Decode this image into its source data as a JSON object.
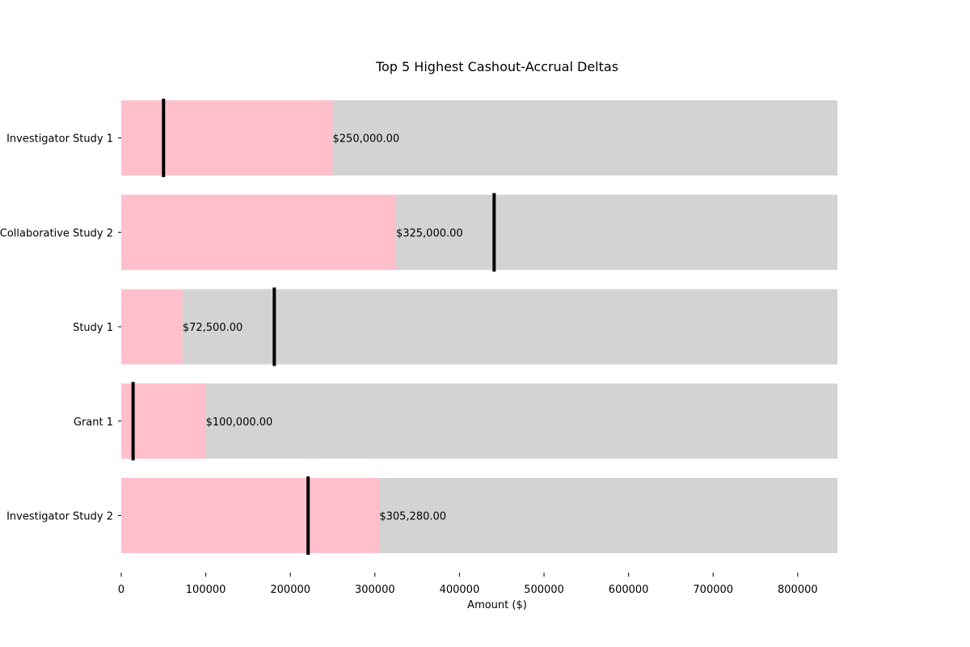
{
  "chart_data": {
    "type": "bar",
    "orientation": "horizontal",
    "title": "Top 5 Highest Cashout-Accrual Deltas",
    "xlabel": "Amount ($)",
    "ylabel": "",
    "xlim": [
      0,
      847000
    ],
    "xticks": [
      0,
      100000,
      200000,
      300000,
      400000,
      500000,
      600000,
      700000,
      800000
    ],
    "grid": false,
    "categories": [
      "Investigator Study 1",
      "Collaborative Study 2",
      "Study 1",
      "Grant 1",
      "Investigator Study 2"
    ],
    "series": [
      {
        "role": "background",
        "values": [
          847000,
          847000,
          847000,
          847000,
          847000
        ]
      },
      {
        "role": "delta",
        "values": [
          250000,
          325000,
          72500,
          100000,
          305280
        ]
      },
      {
        "role": "marker",
        "values": [
          50000,
          441000,
          181000,
          14000,
          221000
        ]
      }
    ],
    "data_labels": [
      "$250,000.00",
      "$325,000.00",
      "$72,500.00",
      "$100,000.00",
      "$305,280.00"
    ],
    "colors": {
      "background": "#d3d3d3",
      "delta": "#ffc0cb",
      "marker": "#000000"
    }
  }
}
